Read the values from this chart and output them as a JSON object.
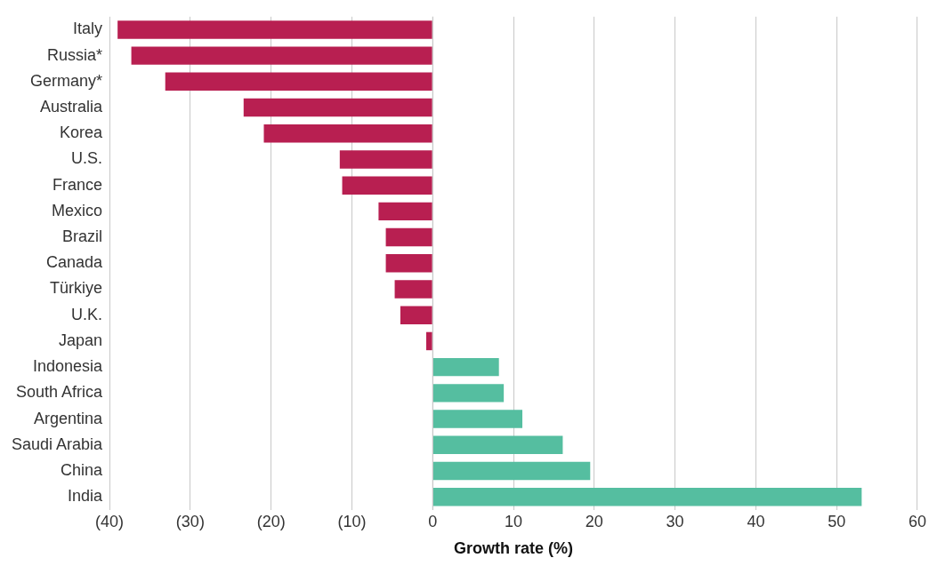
{
  "chart_data": {
    "type": "bar",
    "orientation": "horizontal",
    "xlabel": "Growth rate (%)",
    "categories": [
      "Italy",
      "Russia*",
      "Germany*",
      "Australia",
      "Korea",
      "U.S.",
      "France",
      "Mexico",
      "Brazil",
      "Canada",
      "Türkiye",
      "U.K.",
      "Japan",
      "Indonesia",
      "South Africa",
      "Argentina",
      "Saudi Arabia",
      "China",
      "India"
    ],
    "values": [
      -39.0,
      -37.3,
      -33.1,
      -23.4,
      -20.9,
      -11.5,
      -11.2,
      -6.7,
      -5.8,
      -5.8,
      -4.7,
      -4.0,
      -0.8,
      8.2,
      8.8,
      11.1,
      16.1,
      19.5,
      53.1
    ],
    "colors": [
      "#b81f51",
      "#b81f51",
      "#b81f51",
      "#b81f51",
      "#b81f51",
      "#b81f51",
      "#b81f51",
      "#b81f51",
      "#b81f51",
      "#b81f51",
      "#b81f51",
      "#b81f51",
      "#b81f51",
      "#55bea0",
      "#55bea0",
      "#55bea0",
      "#55bea0",
      "#55bea0",
      "#55bea0"
    ],
    "xlim": [
      -40,
      60
    ],
    "xticks": [
      {
        "value": -40,
        "label": "(40)"
      },
      {
        "value": -30,
        "label": "(30)"
      },
      {
        "value": -20,
        "label": "(20)"
      },
      {
        "value": -10,
        "label": "(10)"
      },
      0,
      10,
      20,
      30,
      40,
      50,
      60
    ],
    "grid": "x",
    "legend": false
  }
}
